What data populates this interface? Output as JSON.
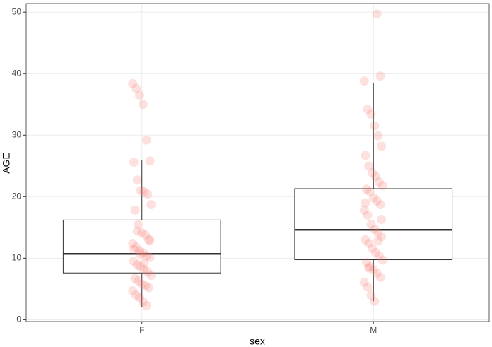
{
  "chart_data": {
    "type": "box",
    "x_label": "sex",
    "y_label": "AGE",
    "categories": [
      "F",
      "M"
    ],
    "boxes": {
      "whisker_low": [
        2.1,
        3.0
      ],
      "q1": [
        7.6,
        9.75
      ],
      "median": [
        10.7,
        14.6
      ],
      "q3": [
        16.2,
        21.3
      ],
      "whisker_high": [
        25.9,
        38.5
      ]
    },
    "points": [
      [
        38.4,
        37.6,
        36.5,
        35.0,
        29.2,
        25.8,
        25.6,
        22.7,
        21.0,
        20.8,
        20.4,
        18.7,
        17.8,
        15.5,
        14.1,
        13.8,
        13.0,
        12.4,
        11.8,
        11.2,
        10.9,
        10.4,
        10.1,
        9.5,
        8.9,
        8.6,
        8.1,
        7.8,
        7.2,
        6.7,
        6.3,
        5.8,
        5.5,
        5.2,
        4.7,
        4.0,
        3.6,
        2.9,
        2.3,
        12.9,
        11.5,
        14.4,
        10.6,
        9.2
      ],
      [
        49.7,
        39.6,
        38.8,
        34.2,
        33.4,
        31.5,
        29.9,
        28.2,
        26.7,
        25.0,
        23.9,
        23.3,
        22.4,
        21.8,
        21.2,
        20.8,
        19.8,
        19.3,
        18.7,
        17.8,
        17.0,
        15.5,
        14.7,
        14.1,
        13.5,
        13.0,
        12.4,
        11.6,
        10.9,
        10.4,
        9.7,
        9.3,
        8.6,
        8.1,
        7.6,
        6.9,
        6.1,
        5.3,
        4.0,
        3.0,
        12.8,
        16.3,
        19.0,
        8.4
      ]
    ],
    "point_color": "#f8766d",
    "ylim": [
      -0.3,
      51.4
    ],
    "yticks": [
      0,
      10,
      20,
      30,
      40,
      50
    ],
    "grid": true
  }
}
